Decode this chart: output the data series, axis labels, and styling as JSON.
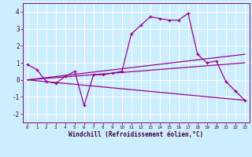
{
  "color": "#990099",
  "bg_color": "#cceeff",
  "grid_color": "#ffffff",
  "xlabel": "Windchill (Refroidissement éolien,°C)",
  "ylim": [
    -2.5,
    4.5
  ],
  "xlim": [
    -0.5,
    23.5
  ],
  "yticks": [
    -2,
    -1,
    0,
    1,
    2,
    3,
    4
  ],
  "xticks": [
    0,
    1,
    2,
    3,
    4,
    5,
    6,
    7,
    8,
    9,
    10,
    11,
    12,
    13,
    14,
    15,
    16,
    17,
    18,
    19,
    20,
    21,
    22,
    23
  ],
  "zigzag_x": [
    0,
    1,
    2,
    3,
    4,
    5,
    6,
    7,
    8,
    9,
    10,
    11,
    12,
    13,
    14,
    15,
    16,
    17,
    18,
    19,
    20,
    21,
    22,
    23
  ],
  "zigzag_y": [
    0.9,
    0.6,
    -0.1,
    -0.2,
    0.2,
    0.5,
    -1.5,
    0.3,
    0.3,
    0.4,
    0.5,
    2.7,
    3.2,
    3.7,
    3.6,
    3.5,
    3.5,
    3.9,
    1.5,
    1.0,
    1.1,
    -0.1,
    -0.65,
    -1.2
  ],
  "trend1_x": [
    0,
    23
  ],
  "trend1_y": [
    0.0,
    1.5
  ],
  "trend2_x": [
    0,
    23
  ],
  "trend2_y": [
    0.0,
    1.0
  ],
  "trend3_x": [
    0,
    23
  ],
  "trend3_y": [
    0.0,
    -1.2
  ]
}
